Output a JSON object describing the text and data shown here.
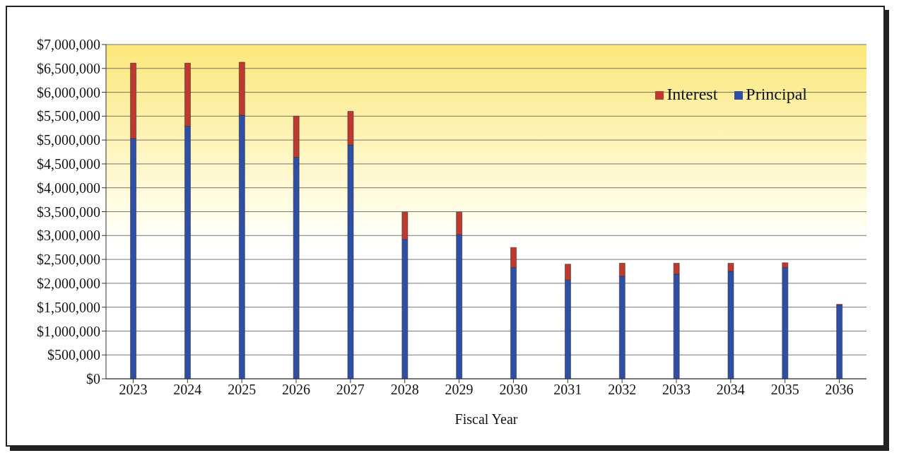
{
  "chart_data": {
    "type": "bar",
    "stacked": true,
    "xlabel": "Fiscal Year",
    "categories": [
      "2023",
      "2024",
      "2025",
      "2026",
      "2027",
      "2028",
      "2029",
      "2030",
      "2031",
      "2032",
      "2033",
      "2034",
      "2035",
      "2036"
    ],
    "series": [
      {
        "name": "Principal",
        "color": "#2e4fa5",
        "values": [
          5030000,
          5290000,
          5520000,
          4640000,
          4900000,
          2920000,
          3020000,
          2330000,
          2070000,
          2150000,
          2190000,
          2250000,
          2330000,
          1540000
        ]
      },
      {
        "name": "Interest",
        "color": "#c0392f",
        "values": [
          1580000,
          1320000,
          1110000,
          860000,
          700000,
          570000,
          470000,
          420000,
          330000,
          270000,
          230000,
          170000,
          100000,
          20000
        ]
      }
    ],
    "ylim": [
      0,
      7000000
    ],
    "yticks": [
      {
        "value": 0,
        "label": "$0"
      },
      {
        "value": 500000,
        "label": "$500,000"
      },
      {
        "value": 1000000,
        "label": "$1,000,000"
      },
      {
        "value": 1500000,
        "label": "$1,500,000"
      },
      {
        "value": 2000000,
        "label": "$2,000,000"
      },
      {
        "value": 2500000,
        "label": "$2,500,000"
      },
      {
        "value": 3000000,
        "label": "$3,000,000"
      },
      {
        "value": 3500000,
        "label": "$3,500,000"
      },
      {
        "value": 4000000,
        "label": "$4,000,000"
      },
      {
        "value": 4500000,
        "label": "$4,500,000"
      },
      {
        "value": 5000000,
        "label": "$5,000,000"
      },
      {
        "value": 5500000,
        "label": "$5,500,000"
      },
      {
        "value": 6000000,
        "label": "$6,000,000"
      },
      {
        "value": 6500000,
        "label": "$6,500,000"
      },
      {
        "value": 7000000,
        "label": "$7,000,000"
      }
    ],
    "grid": "y",
    "legend": "top right"
  }
}
